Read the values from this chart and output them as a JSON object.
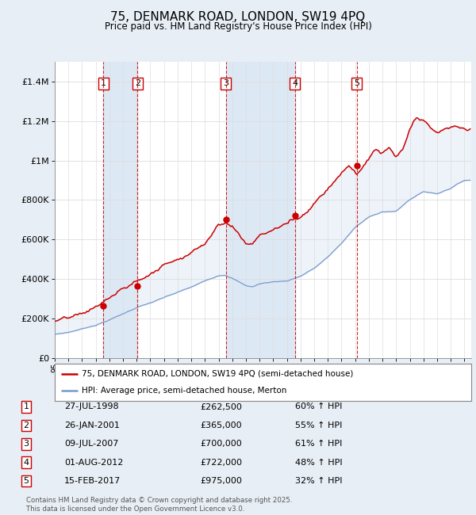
{
  "title": "75, DENMARK ROAD, LONDON, SW19 4PQ",
  "subtitle": "Price paid vs. HM Land Registry's House Price Index (HPI)",
  "background_color": "#e8eef5",
  "plot_background": "#ffffff",
  "purchases": [
    {
      "num": 1,
      "date_label": "27-JUL-1998",
      "year": 1998.57,
      "price": 262500,
      "hpi_pct": "60% ↑ HPI"
    },
    {
      "num": 2,
      "date_label": "26-JAN-2001",
      "year": 2001.07,
      "price": 365000,
      "hpi_pct": "55% ↑ HPI"
    },
    {
      "num": 3,
      "date_label": "09-JUL-2007",
      "year": 2007.52,
      "price": 700000,
      "hpi_pct": "61% ↑ HPI"
    },
    {
      "num": 4,
      "date_label": "01-AUG-2012",
      "year": 2012.58,
      "price": 722000,
      "hpi_pct": "48% ↑ HPI"
    },
    {
      "num": 5,
      "date_label": "15-FEB-2017",
      "year": 2017.12,
      "price": 975000,
      "hpi_pct": "32% ↑ HPI"
    }
  ],
  "legend_line1": "75, DENMARK ROAD, LONDON, SW19 4PQ (semi-detached house)",
  "legend_line2": "HPI: Average price, semi-detached house, Merton",
  "footer": "Contains HM Land Registry data © Crown copyright and database right 2025.\nThis data is licensed under the Open Government Licence v3.0.",
  "red_color": "#cc0000",
  "blue_color": "#7799cc",
  "band_color": "#dde8f5",
  "ylim": [
    0,
    1500000
  ],
  "xlim_start": 1995.0,
  "xlim_end": 2025.5,
  "yticks": [
    0,
    200000,
    400000,
    600000,
    800000,
    1000000,
    1200000,
    1400000
  ],
  "ytick_labels": [
    "£0",
    "£200K",
    "£400K",
    "£600K",
    "£800K",
    "£1M",
    "£1.2M",
    "£1.4M"
  ],
  "table_rows": [
    [
      "1",
      "27-JUL-1998",
      "£262,500",
      "60% ↑ HPI"
    ],
    [
      "2",
      "26-JAN-2001",
      "£365,000",
      "55% ↑ HPI"
    ],
    [
      "3",
      "09-JUL-2007",
      "£700,000",
      "61% ↑ HPI"
    ],
    [
      "4",
      "01-AUG-2012",
      "£722,000",
      "48% ↑ HPI"
    ],
    [
      "5",
      "15-FEB-2017",
      "£975,000",
      "32% ↑ HPI"
    ]
  ]
}
